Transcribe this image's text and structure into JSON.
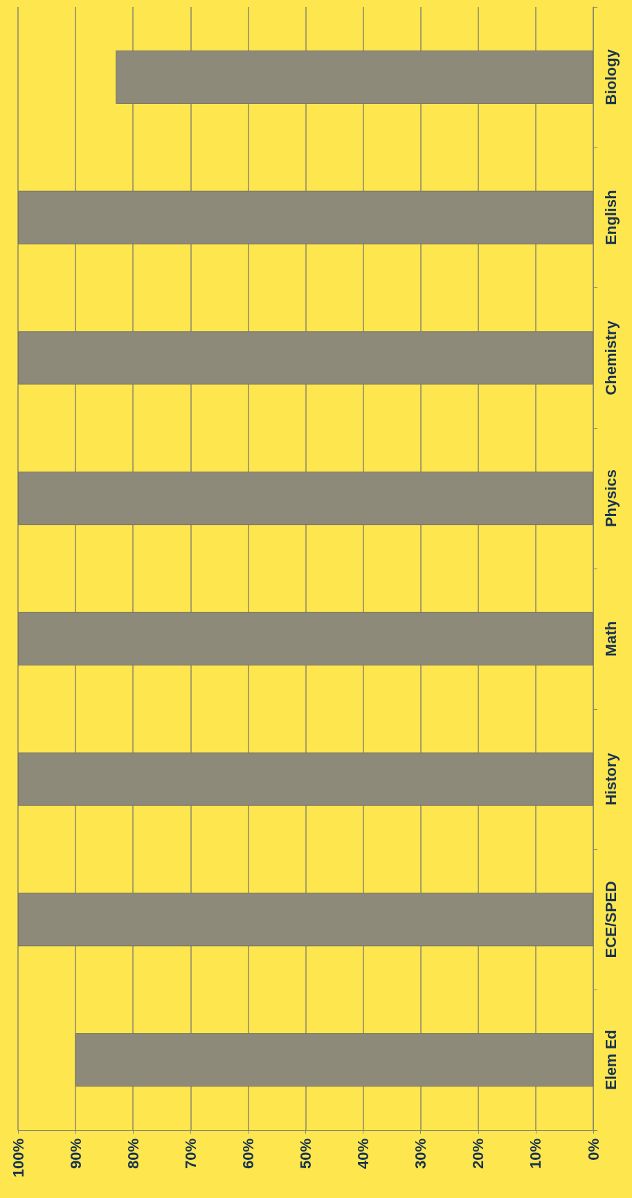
{
  "chart_data": {
    "type": "bar",
    "orientation": "horizontal",
    "categories": [
      "Biology",
      "English",
      "Chemistry",
      "Physics",
      "Math",
      "History",
      "ECE/SPED",
      "Elem Ed"
    ],
    "values": [
      83,
      100,
      100,
      100,
      100,
      100,
      100,
      90
    ],
    "color": "#8e8a7a",
    "xlim": [
      100,
      0
    ],
    "xticks": [
      {
        "value": 100,
        "label": "100%"
      },
      {
        "value": 90,
        "label": "90%"
      },
      {
        "value": 80,
        "label": "80%"
      },
      {
        "value": 70,
        "label": "70%"
      },
      {
        "value": 60,
        "label": "60%"
      },
      {
        "value": 50,
        "label": "50%"
      },
      {
        "value": 40,
        "label": "40%"
      },
      {
        "value": 30,
        "label": "30%"
      },
      {
        "value": 20,
        "label": "20%"
      },
      {
        "value": 10,
        "label": "10%"
      },
      {
        "value": 0,
        "label": "0%"
      }
    ],
    "grid": "x"
  }
}
